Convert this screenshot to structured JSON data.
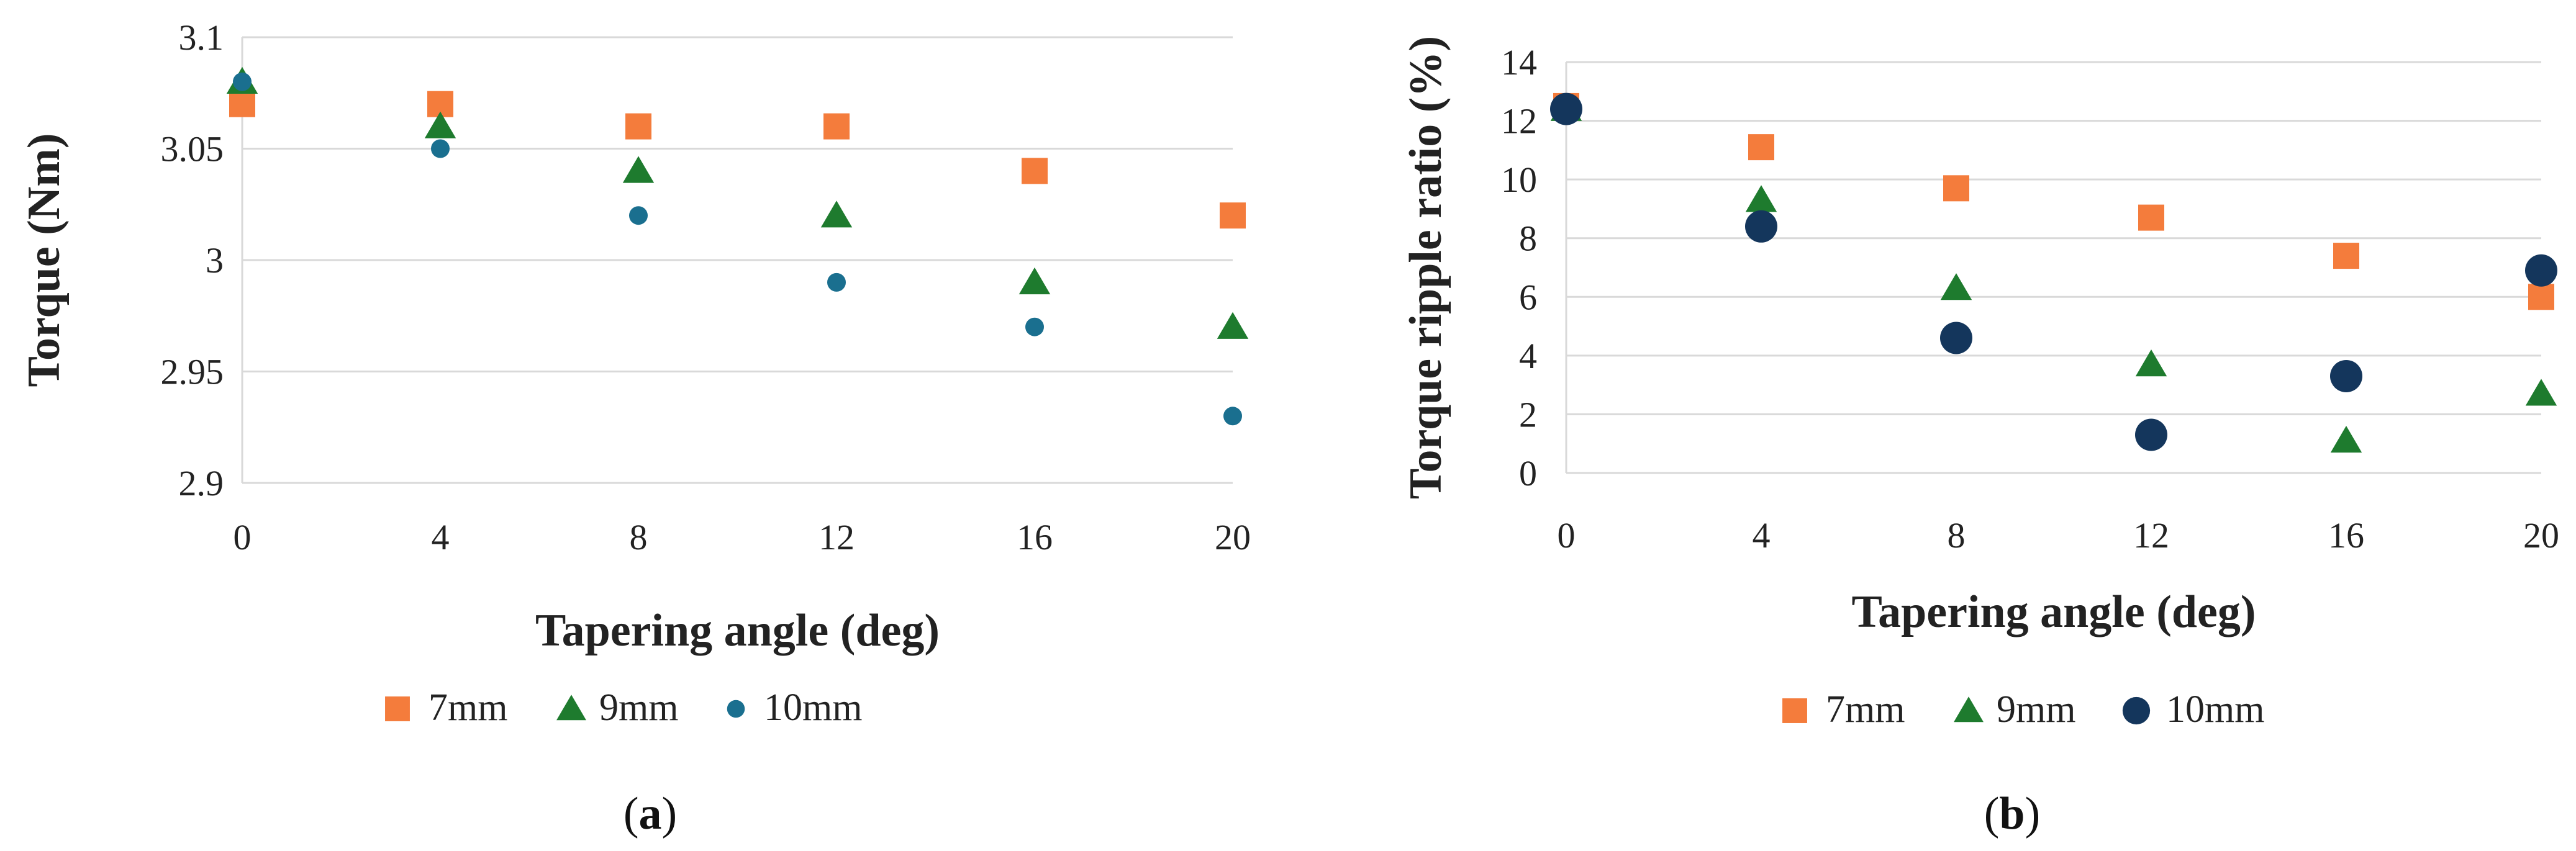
{
  "chart_data": [
    {
      "type": "scatter",
      "panel_label": "a",
      "xlabel": "Tapering angle (deg)",
      "ylabel": "Torque (Nm)",
      "x": [
        0,
        4,
        8,
        12,
        16,
        20
      ],
      "xticks": [
        "0",
        "4",
        "8",
        "12",
        "16",
        "20"
      ],
      "ylim": [
        2.9,
        3.1
      ],
      "yticks": [
        "2.9",
        "2.95",
        "3",
        "3.05",
        "3.1"
      ],
      "grid": "horizontal",
      "legend_position": "bottom",
      "series": [
        {
          "name": "7mm",
          "marker": "square",
          "color": "#f47c3c",
          "values": [
            3.07,
            3.07,
            3.06,
            3.06,
            3.04,
            3.02
          ]
        },
        {
          "name": "9mm",
          "marker": "triangle",
          "color": "#1e7b2e",
          "values": [
            3.08,
            3.06,
            3.04,
            3.02,
            2.99,
            2.97
          ]
        },
        {
          "name": "10mm",
          "marker": "circle-small",
          "color": "#1a6f8f",
          "values": [
            3.08,
            3.05,
            3.02,
            2.99,
            2.97,
            2.93
          ]
        }
      ]
    },
    {
      "type": "scatter",
      "panel_label": "b",
      "xlabel": "Tapering angle (deg)",
      "ylabel": "Torque ripple ratio (%)",
      "x": [
        0,
        4,
        8,
        12,
        16,
        20
      ],
      "xticks": [
        "0",
        "4",
        "8",
        "12",
        "16",
        "20"
      ],
      "ylim": [
        0,
        14
      ],
      "yticks": [
        "0",
        "2",
        "4",
        "6",
        "8",
        "10",
        "12",
        "14"
      ],
      "grid": "horizontal",
      "legend_position": "bottom",
      "series": [
        {
          "name": "7mm",
          "marker": "square",
          "color": "#f47c3c",
          "values": [
            12.5,
            11.1,
            9.7,
            8.7,
            7.4,
            6.0
          ]
        },
        {
          "name": "9mm",
          "marker": "triangle",
          "color": "#1e7b2e",
          "values": [
            12.4,
            9.3,
            6.3,
            3.7,
            1.1,
            2.7
          ]
        },
        {
          "name": "10mm",
          "marker": "circle-large",
          "color": "#14365c",
          "values": [
            12.4,
            8.4,
            4.6,
            1.3,
            3.3,
            6.9
          ]
        }
      ]
    }
  ]
}
